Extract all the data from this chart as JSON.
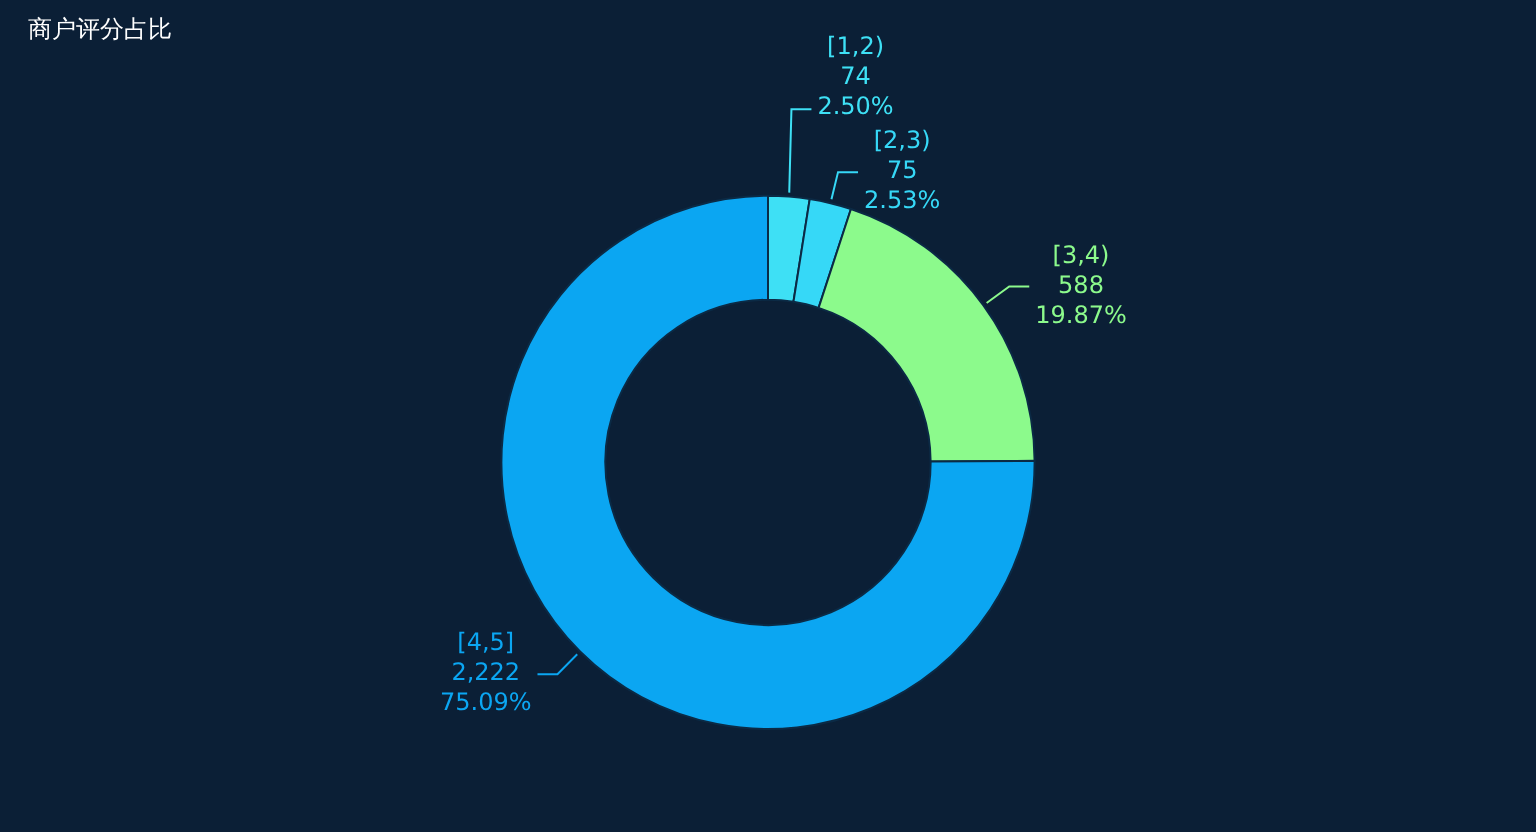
{
  "chart_data": {
    "type": "donut",
    "title": "商户评分占比",
    "categories": [
      "[1,2)",
      "[2,3)",
      "[3,4)",
      "[4,5]"
    ],
    "values": [
      74,
      75,
      588,
      2222
    ],
    "colors": [
      "#3ee0f5",
      "#36d8f7",
      "#8cfa8c",
      "#0ba6f2"
    ],
    "value_labels": [
      "74\n2.50%",
      "75\n2.53%",
      "588\n19.87%",
      "2,222\n75.09%"
    ],
    "legend": false
  }
}
